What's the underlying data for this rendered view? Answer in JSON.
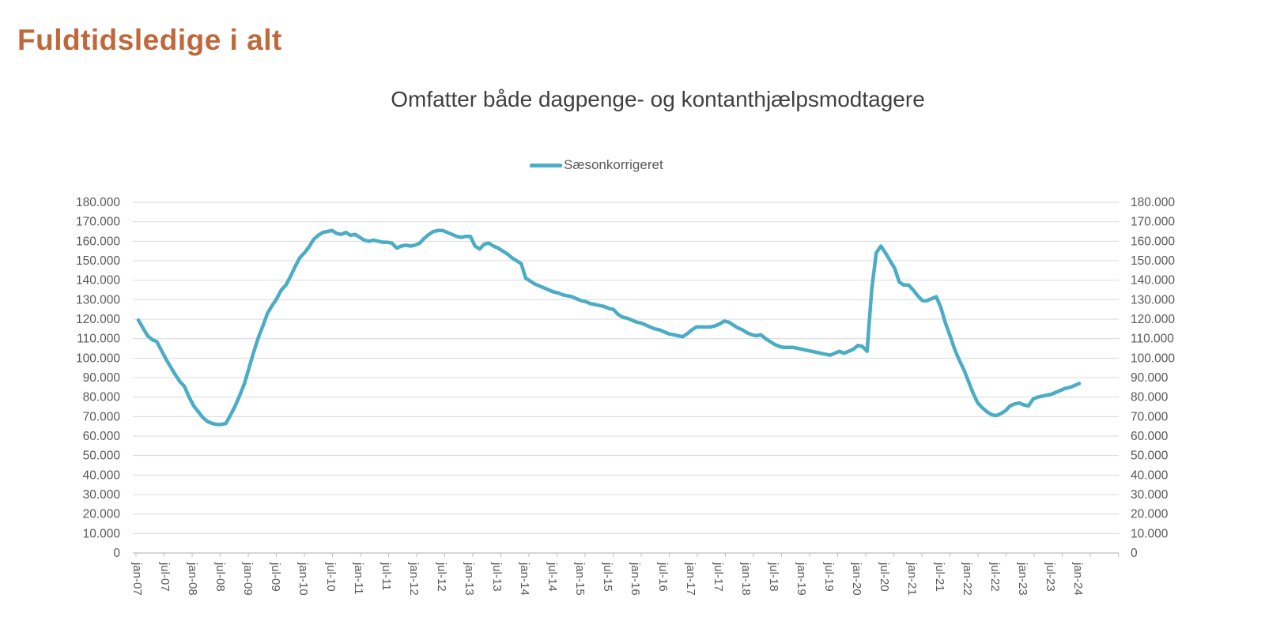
{
  "page_title": "Fuldtidsledige i alt",
  "chart": {
    "subtitle": "Omfatter både dagpenge- og kontanthjælpsmodtagere",
    "legend": {
      "label": "Sæsonkorrigeret"
    }
  },
  "colors": {
    "title": "#C0683A",
    "subtitle_text": "#404040",
    "series_line": "#4BACC6",
    "axis_text": "#595959",
    "gridline": "#D9D9D9",
    "axis_line": "#BFBFBF"
  },
  "chart_data": {
    "type": "line",
    "title": "Omfatter både dagpenge- og kontanthjælpsmodtagere",
    "legend_position": "top-center",
    "grid": "horizontal",
    "y_axis_sides": [
      "left",
      "right"
    ],
    "ylim": [
      0,
      180000
    ],
    "y_tick_step": 10000,
    "y_tick_labels": [
      "180.000",
      "170.000",
      "160.000",
      "150.000",
      "140.000",
      "130.000",
      "120.000",
      "110.000",
      "100.000",
      "90.000",
      "80.000",
      "70.000",
      "60.000",
      "50.000",
      "40.000",
      "30.000",
      "20.000",
      "10.000",
      "0"
    ],
    "x_start": "jan-07",
    "x_interval": "monthly",
    "x_tick_every_months": 6,
    "x_tick_labels": [
      "jan-07",
      "jul-07",
      "jan-08",
      "jul-08",
      "jan-09",
      "jul-09",
      "jan-10",
      "jul-10",
      "jan-11",
      "jul-11",
      "jan-12",
      "jul-12",
      "jan-13",
      "jul-13",
      "jan-14",
      "jul-14",
      "jan-15",
      "jul-15",
      "jan-16",
      "jul-16",
      "jan-17",
      "jul-17",
      "jan-18",
      "jul-18",
      "jan-19",
      "jul-19",
      "jan-20",
      "jul-20",
      "jan-21",
      "jul-21",
      "jan-22",
      "jul-22",
      "jan-23",
      "jul-23",
      "jan-24"
    ],
    "series": [
      {
        "name": "Sæsonkorrigeret",
        "color": "#4BACC6",
        "values": [
          119500,
          115500,
          111500,
          109500,
          108500,
          104000,
          99500,
          95500,
          91500,
          88000,
          85500,
          80000,
          75500,
          72500,
          69500,
          67500,
          66500,
          66000,
          66000,
          66500,
          71000,
          75500,
          81000,
          87000,
          95000,
          103000,
          110500,
          116500,
          123000,
          127000,
          130500,
          135000,
          137500,
          142000,
          147000,
          151500,
          154000,
          157000,
          161000,
          163000,
          164500,
          165000,
          165500,
          164000,
          163500,
          164500,
          163000,
          163500,
          162000,
          160500,
          160000,
          160500,
          160000,
          159500,
          159500,
          159000,
          156500,
          157500,
          158000,
          157500,
          158000,
          159000,
          161500,
          163500,
          165000,
          165500,
          165500,
          164500,
          163500,
          162500,
          162000,
          162500,
          162500,
          157500,
          156000,
          158500,
          159000,
          157500,
          156500,
          155000,
          153500,
          151500,
          150000,
          148500,
          141000,
          139500,
          138000,
          137000,
          136000,
          135000,
          134000,
          133500,
          132500,
          132000,
          131500,
          130500,
          129500,
          129000,
          128000,
          127500,
          127000,
          126500,
          125500,
          125000,
          122500,
          121000,
          120500,
          119500,
          118500,
          118000,
          117000,
          116000,
          115000,
          114500,
          113500,
          112500,
          112000,
          111500,
          111000,
          112500,
          114500,
          116000,
          116000,
          116000,
          116000,
          116500,
          117500,
          119000,
          118500,
          117000,
          115500,
          114500,
          113000,
          112000,
          111500,
          112000,
          110000,
          108500,
          107000,
          106000,
          105500,
          105500,
          105500,
          105000,
          104500,
          104000,
          103500,
          103000,
          102500,
          102000,
          101500,
          102500,
          103500,
          102500,
          103500,
          104500,
          106500,
          106000,
          103500,
          135000,
          154000,
          157500,
          154000,
          150000,
          146000,
          139000,
          137500,
          137500,
          135000,
          132000,
          129500,
          129500,
          130500,
          131500,
          126000,
          118000,
          111500,
          104500,
          99000,
          94000,
          88000,
          82000,
          77000,
          74500,
          72500,
          71000,
          70500,
          71500,
          73000,
          75500,
          76500,
          77000,
          76000,
          75500,
          79000,
          80000,
          80500,
          81000,
          81500,
          82500,
          83500,
          84500,
          85000,
          86000,
          87000
        ]
      }
    ]
  }
}
